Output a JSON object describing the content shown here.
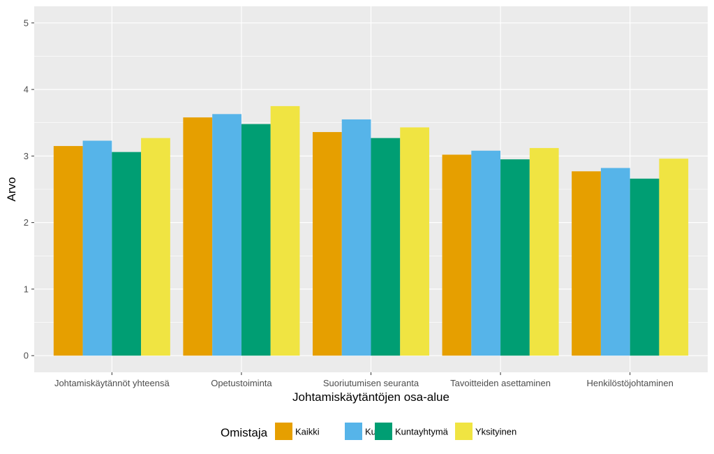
{
  "chart_data": {
    "type": "bar",
    "title": "",
    "xlabel": "Johtamiskäytäntöjen osa-alue",
    "ylabel": "Arvo",
    "ylim": [
      -0.25,
      5.25
    ],
    "yticks": [
      0,
      1,
      2,
      3,
      4,
      5
    ],
    "grid": true,
    "legend_title": "Omistaja",
    "legend_position": "bottom",
    "categories": [
      "Johtamiskäytännöt yhteensä",
      "Opetustoiminta",
      "Suoriutumisen seuranta",
      "Tavoitteiden asettaminen",
      "Henkilöstöjohtaminen"
    ],
    "series": [
      {
        "name": "Kaikki",
        "color": "#E69F00",
        "values": [
          3.15,
          3.58,
          3.36,
          3.02,
          2.77
        ]
      },
      {
        "name": "Kunta",
        "color": "#56B4E9",
        "values": [
          3.23,
          3.63,
          3.55,
          3.08,
          2.82
        ]
      },
      {
        "name": "Kuntayhtymä",
        "color": "#009E73",
        "values": [
          3.06,
          3.48,
          3.27,
          2.95,
          2.66
        ]
      },
      {
        "name": "Yksityinen",
        "color": "#F0E442",
        "values": [
          3.27,
          3.75,
          3.43,
          3.12,
          2.96
        ]
      }
    ],
    "panel_background": "#EBEBEB",
    "gridline_color": "#FFFFFF"
  }
}
